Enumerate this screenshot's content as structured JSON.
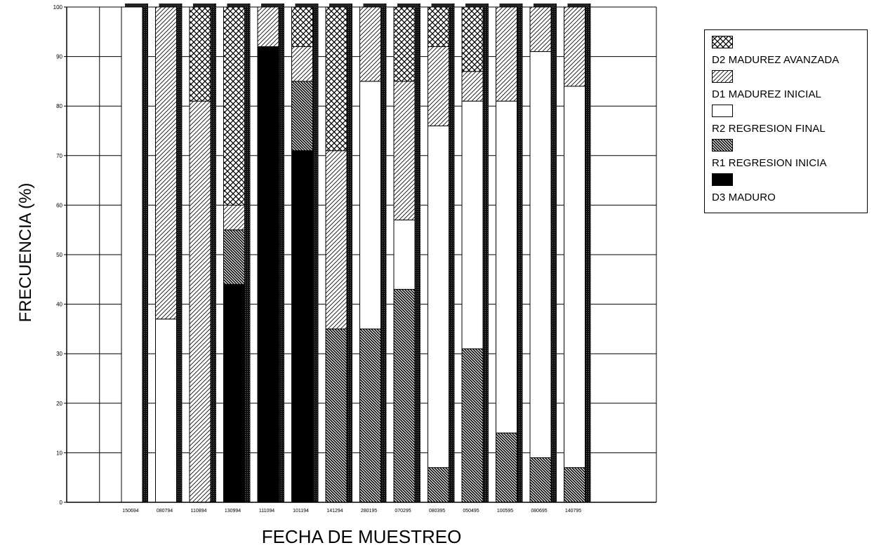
{
  "chart_data": {
    "type": "bar",
    "stacked": true,
    "title": "",
    "xlabel": "FECHA DE MUESTREO",
    "ylabel": "FRECUENCIA (%)",
    "ylim": [
      0,
      100
    ],
    "yticks": [
      0,
      10,
      20,
      30,
      40,
      50,
      60,
      70,
      80,
      90,
      100
    ],
    "grid": true,
    "legend_position": "right",
    "categories": [
      "150694",
      "080794",
      "110894",
      "130994",
      "111094",
      "101194",
      "141294",
      "280195",
      "070295",
      "080395",
      "050495",
      "100595",
      "080695",
      "140795"
    ],
    "series": [
      {
        "name": "D3 MADURO",
        "pattern": "solid-black",
        "values": [
          0,
          0,
          0,
          44,
          92,
          71,
          0,
          0,
          0,
          0,
          0,
          0,
          0,
          0
        ]
      },
      {
        "name": "R1 REGRESION INICIA",
        "pattern": "dense-hatch",
        "values": [
          0,
          0,
          0,
          11,
          0,
          14,
          35,
          35,
          43,
          7,
          31,
          14,
          9,
          7
        ]
      },
      {
        "name": "R2 REGRESION FINAL",
        "pattern": "white",
        "values": [
          100,
          37,
          0,
          0,
          0,
          0,
          0,
          50,
          14,
          69,
          50,
          67,
          82,
          77
        ]
      },
      {
        "name": "D1 MADUREZ INICIAL",
        "pattern": "light-hatch",
        "values": [
          0,
          63,
          81,
          5,
          8,
          7,
          36,
          15,
          28,
          16,
          6,
          19,
          9,
          16
        ]
      },
      {
        "name": "D2 MADUREZ AVANZADA",
        "pattern": "crosshatch",
        "values": [
          0,
          0,
          19,
          40,
          0,
          8,
          29,
          0,
          15,
          8,
          13,
          0,
          0,
          0
        ]
      }
    ]
  },
  "legend": {
    "items": [
      {
        "label": "D2 MADUREZ AVANZADA",
        "pattern": "crosshatch"
      },
      {
        "label": "D1 MADUREZ INICIAL",
        "pattern": "light-hatch"
      },
      {
        "label": "R2 REGRESION FINAL",
        "pattern": "white"
      },
      {
        "label": "R1 REGRESION INICIA",
        "pattern": "dense-hatch"
      },
      {
        "label": "D3 MADURO",
        "pattern": "solid-black"
      }
    ]
  },
  "colors": {
    "ink": "#000000",
    "background": "#ffffff",
    "shadow": "#111111"
  }
}
